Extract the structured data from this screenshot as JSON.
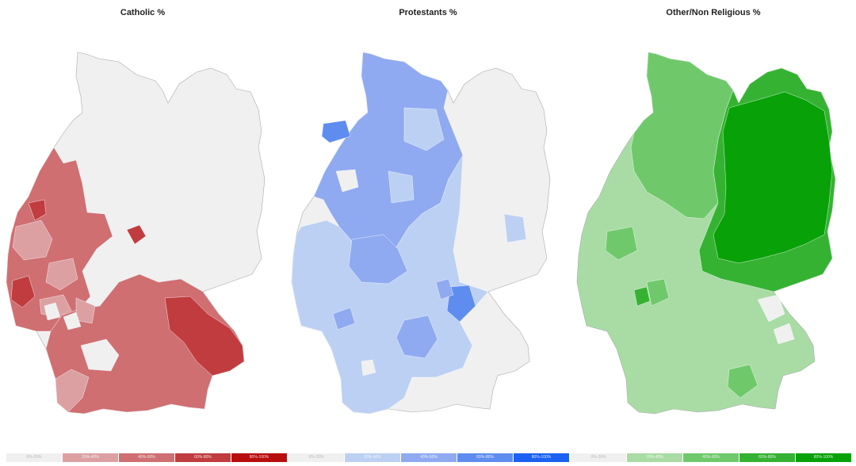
{
  "panels": [
    {
      "title": "Catholic %",
      "legend": [
        {
          "label": "0%-20%",
          "color": "#f0f0f0"
        },
        {
          "label": "20%-40%",
          "color": "#dca0a3"
        },
        {
          "label": "40%-60%",
          "color": "#cf6f72"
        },
        {
          "label": "60%-80%",
          "color": "#c13c3e"
        },
        {
          "label": "80%-100%",
          "color": "#b80d0d"
        }
      ]
    },
    {
      "title": "Protestants %",
      "legend": [
        {
          "label": "0%-20%",
          "color": "#f0f0f0"
        },
        {
          "label": "20%-40%",
          "color": "#bcd0f3"
        },
        {
          "label": "40%-60%",
          "color": "#8faaf0"
        },
        {
          "label": "60%-80%",
          "color": "#5f8def"
        },
        {
          "label": "80%-100%",
          "color": "#1b62f2"
        }
      ]
    },
    {
      "title": "Other/Non Religious %",
      "legend": [
        {
          "label": "0%-20%",
          "color": "#f0f0f0"
        },
        {
          "label": "20%-40%",
          "color": "#a8dca4"
        },
        {
          "label": "40%-60%",
          "color": "#6fc96b"
        },
        {
          "label": "60%-80%",
          "color": "#36b233"
        },
        {
          "label": "80%-100%",
          "color": "#08a208"
        }
      ]
    }
  ]
}
